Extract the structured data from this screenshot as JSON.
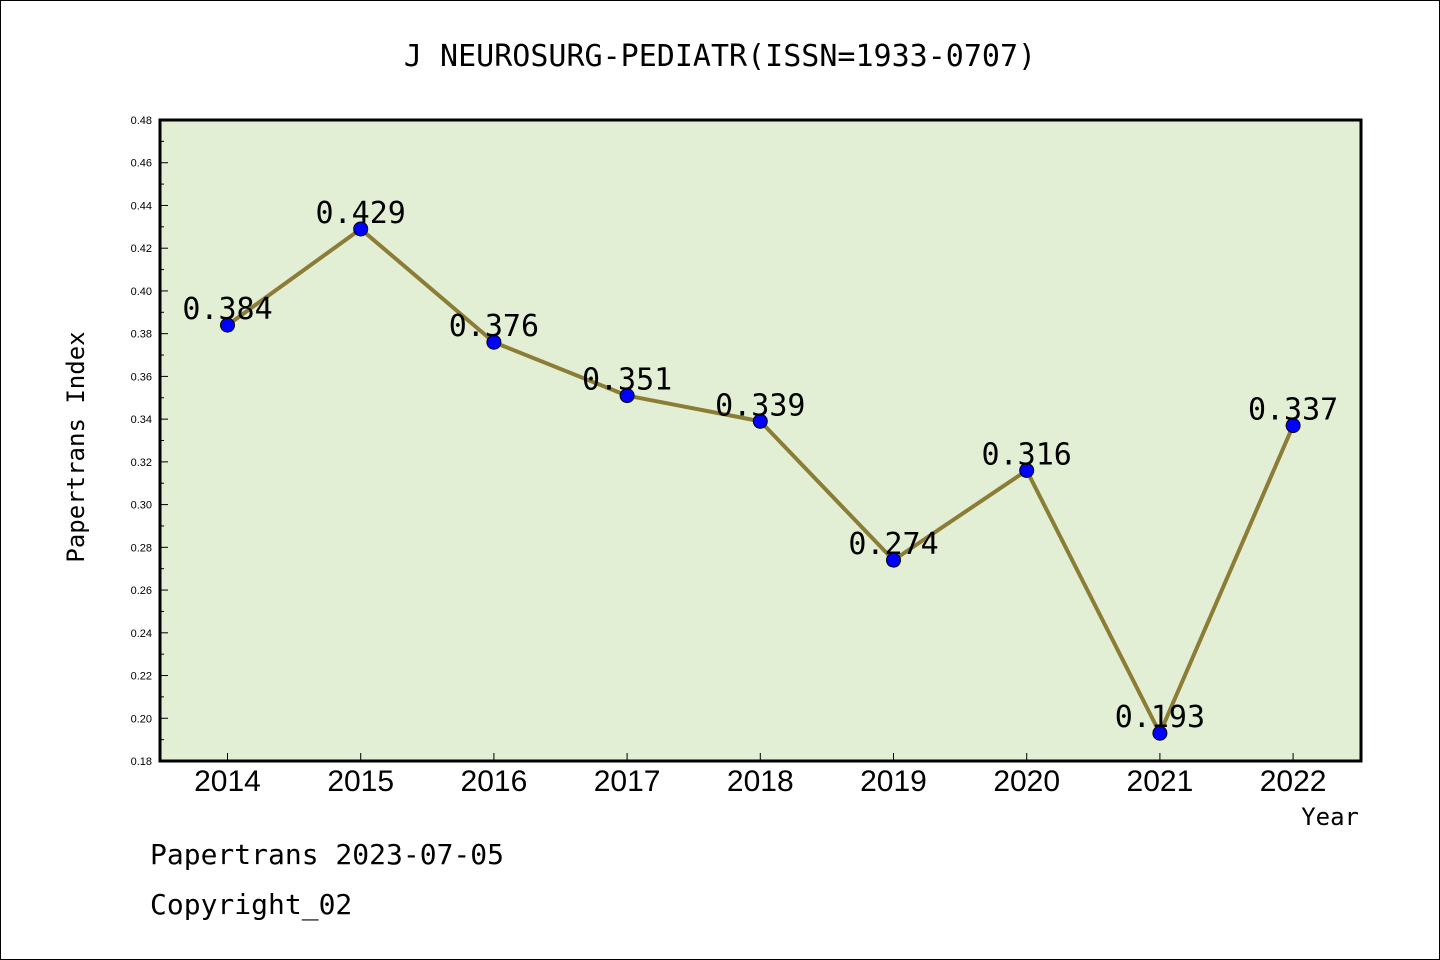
{
  "chart_data": {
    "type": "line",
    "title": "J NEUROSURG-PEDIATR(ISSN=1933-0707)",
    "xlabel": "Year",
    "ylabel": "Papertrans Index",
    "x": [
      "2014",
      "2015",
      "2016",
      "2017",
      "2018",
      "2019",
      "2020",
      "2021",
      "2022"
    ],
    "values": [
      0.384,
      0.429,
      0.376,
      0.351,
      0.339,
      0.274,
      0.316,
      0.193,
      0.337
    ],
    "data_labels": [
      "0.384",
      "0.429",
      "0.376",
      "0.351",
      "0.339",
      "0.274",
      "0.316",
      "0.193",
      "0.337"
    ],
    "ylim": [
      0.18,
      0.48
    ],
    "yticks": [
      "0.18",
      "0.20",
      "0.22",
      "0.24",
      "0.26",
      "0.28",
      "0.30",
      "0.32",
      "0.34",
      "0.36",
      "0.38",
      "0.40",
      "0.42",
      "0.44",
      "0.46",
      "0.48"
    ],
    "grid": false,
    "colors": {
      "plot_background": "#e2efd5",
      "line": "#8b7d35",
      "marker": "#0000ff"
    }
  },
  "footer": {
    "line1": "Papertrans 2023-07-05",
    "line2": "Copyright_02"
  }
}
